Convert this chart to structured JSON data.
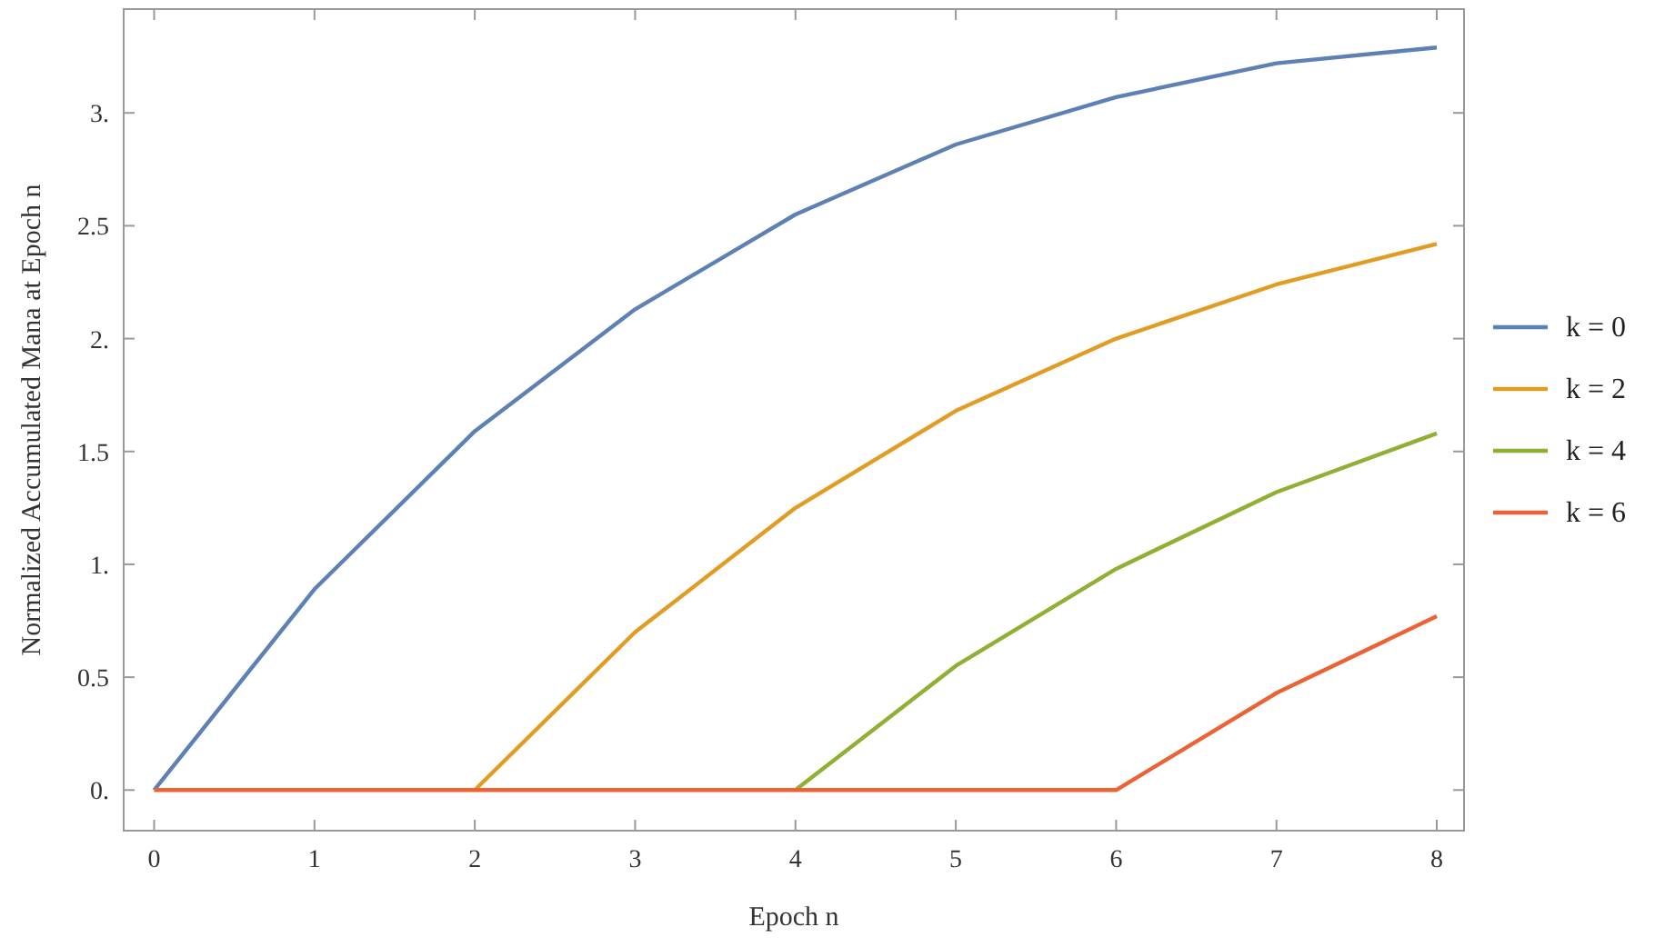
{
  "chart_data": {
    "type": "line",
    "xlabel": "Epoch n",
    "ylabel": "Normalized Accumulated Mana at Epoch n",
    "x": [
      0,
      1,
      2,
      3,
      4,
      5,
      6,
      7,
      8
    ],
    "series": [
      {
        "name": "k = 0",
        "color": "#5e81b5",
        "values": [
          0,
          0.89,
          1.59,
          2.13,
          2.55,
          2.86,
          3.07,
          3.22,
          3.29
        ]
      },
      {
        "name": "k = 2",
        "color": "#e19c24",
        "values": [
          null,
          null,
          0,
          0.7,
          1.25,
          1.68,
          2.0,
          2.24,
          2.42
        ]
      },
      {
        "name": "k = 4",
        "color": "#8fb032",
        "values": [
          null,
          null,
          null,
          null,
          0,
          0.55,
          0.98,
          1.32,
          1.58
        ]
      },
      {
        "name": "k = 6",
        "color": "#eb6235",
        "values": [
          0,
          0,
          0,
          0,
          0,
          0,
          0,
          0.43,
          0.77
        ]
      }
    ],
    "xlim": [
      -0.19,
      8.17
    ],
    "xticks": [
      0,
      1,
      2,
      3,
      4,
      5,
      6,
      7,
      8
    ],
    "ylim": [
      -0.18,
      3.46
    ],
    "yticks": [
      {
        "value": 0,
        "label": "0."
      },
      0.5,
      {
        "value": 1,
        "label": "1."
      },
      1.5,
      {
        "value": 2,
        "label": "2."
      },
      2.5,
      {
        "value": 3,
        "label": "3."
      }
    ],
    "grid": false,
    "legend": "right",
    "marker": "none",
    "line_style": "solid"
  }
}
